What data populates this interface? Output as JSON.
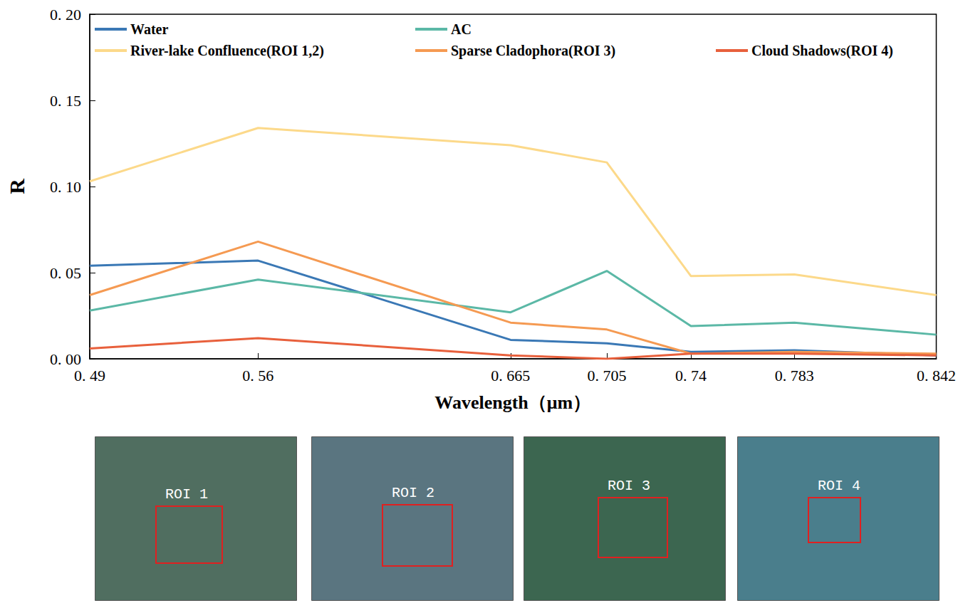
{
  "chart_data": {
    "type": "line",
    "x_label": "Wavelength（μm）",
    "y_label": "R",
    "x": [
      0.49,
      0.56,
      0.665,
      0.705,
      0.74,
      0.783,
      0.842
    ],
    "xlim": [
      0.49,
      0.842
    ],
    "xticks": [
      {
        "value": 0.49,
        "label": "0. 49"
      },
      {
        "value": 0.56,
        "label": "0. 56"
      },
      {
        "value": 0.665,
        "label": "0. 665"
      },
      {
        "value": 0.705,
        "label": "0. 705"
      },
      {
        "value": 0.74,
        "label": "0. 74"
      },
      {
        "value": 0.783,
        "label": "0. 783"
      },
      {
        "value": 0.842,
        "label": "0. 842"
      }
    ],
    "ylim": [
      0,
      0.2
    ],
    "yticks": [
      {
        "value": 0,
        "label": "0. 00"
      },
      {
        "value": 0.05,
        "label": "0. 05"
      },
      {
        "value": 0.1,
        "label": "0. 10"
      },
      {
        "value": 0.15,
        "label": "0. 15"
      },
      {
        "value": 0.2,
        "label": "0. 20"
      }
    ],
    "grid": false,
    "legend": "top",
    "series": [
      {
        "name": "Water",
        "color": "#3a78b5",
        "values": [
          0.054,
          0.057,
          0.011,
          0.009,
          0.004,
          0.005,
          0.002
        ]
      },
      {
        "name": "AC",
        "color": "#5bb8a6",
        "values": [
          0.028,
          0.046,
          0.027,
          0.051,
          0.019,
          0.021,
          0.014
        ]
      },
      {
        "name": "River-lake Confluence(ROI 1,2)",
        "color": "#fcd98a",
        "values": [
          0.103,
          0.134,
          0.124,
          0.114,
          0.048,
          0.049,
          0.037
        ]
      },
      {
        "name": "Sparse Cladophora(ROI 3)",
        "color": "#f59a52",
        "values": [
          0.037,
          0.068,
          0.021,
          0.017,
          0.003,
          0.004,
          0.003
        ]
      },
      {
        "name": "Cloud Shadows(ROI 4)",
        "color": "#e8603c",
        "values": [
          0.006,
          0.012,
          0.002,
          0.0,
          0.003,
          0.003,
          0.002
        ]
      }
    ],
    "annotations": [
      "ROI 1",
      "ROI 2",
      "ROI 3",
      "ROI 4"
    ]
  }
}
